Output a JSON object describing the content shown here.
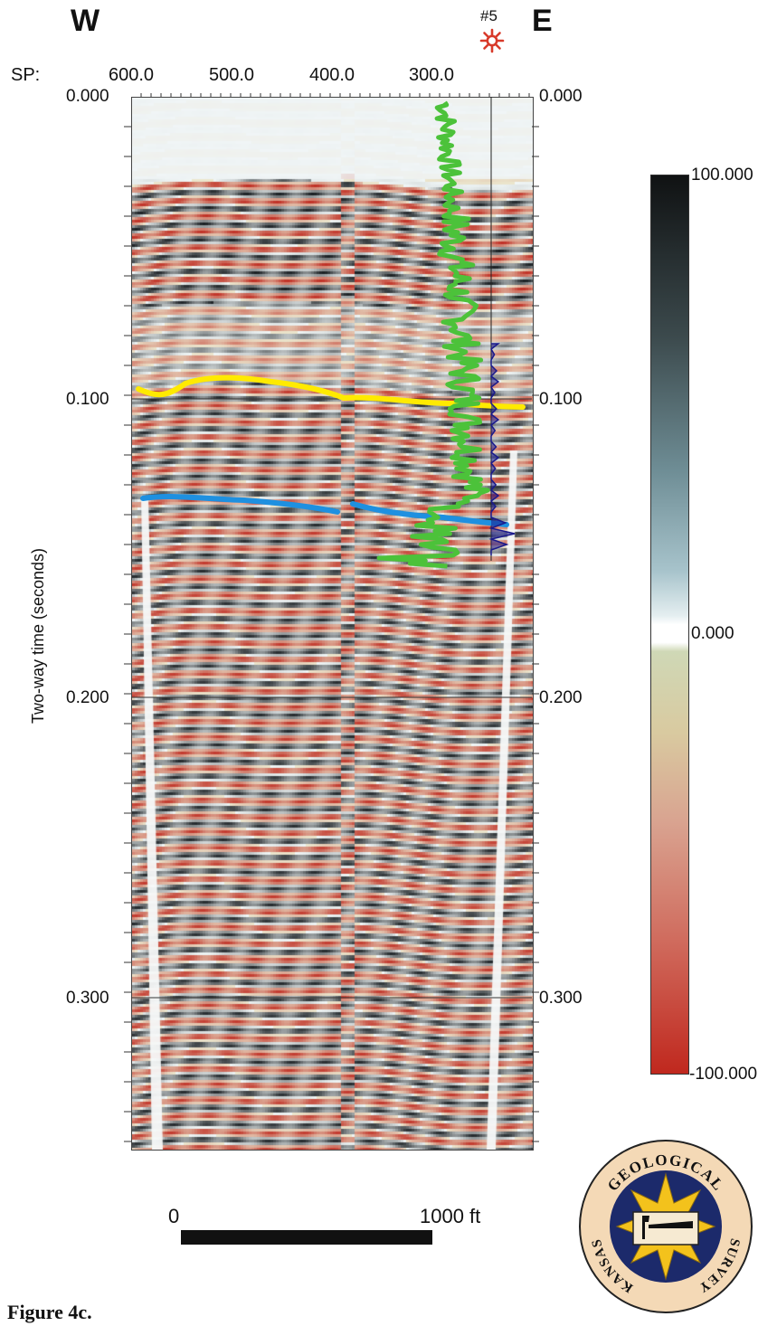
{
  "header": {
    "west_label": "W",
    "east_label": "E",
    "well_label": "#5",
    "sp_label": "SP:",
    "sp_ticks": [
      "600.0",
      "500.0",
      "400.0",
      "300.0"
    ]
  },
  "axis": {
    "ylabel": "Two-way time (seconds)",
    "left_ticks": [
      "0.000",
      "0.100",
      "0.200",
      "0.300"
    ],
    "right_ticks": [
      "0.000",
      "0.100",
      "0.200",
      "0.300"
    ]
  },
  "colorbar": {
    "max_label": "100.000",
    "mid_label": "0.000",
    "min_label": "-100.000",
    "colors": {
      "max": "#111111",
      "mid": "#ffffff",
      "min": "#c0281e"
    }
  },
  "horizons": {
    "upper_color": "#ffea00",
    "lower_color": "#1e90e0",
    "well_log_color": "#4cc23a",
    "synthetic_color": "#1a1a8c"
  },
  "scale_bar": {
    "start_label": "0",
    "end_label": "1000 ft"
  },
  "logo": {
    "text_top": "GEOLOGICAL",
    "text_left": "KANSAS",
    "text_right": "SURVEY",
    "icon": "kansas-state-hammer-icon"
  },
  "caption": "Figure 4c."
}
